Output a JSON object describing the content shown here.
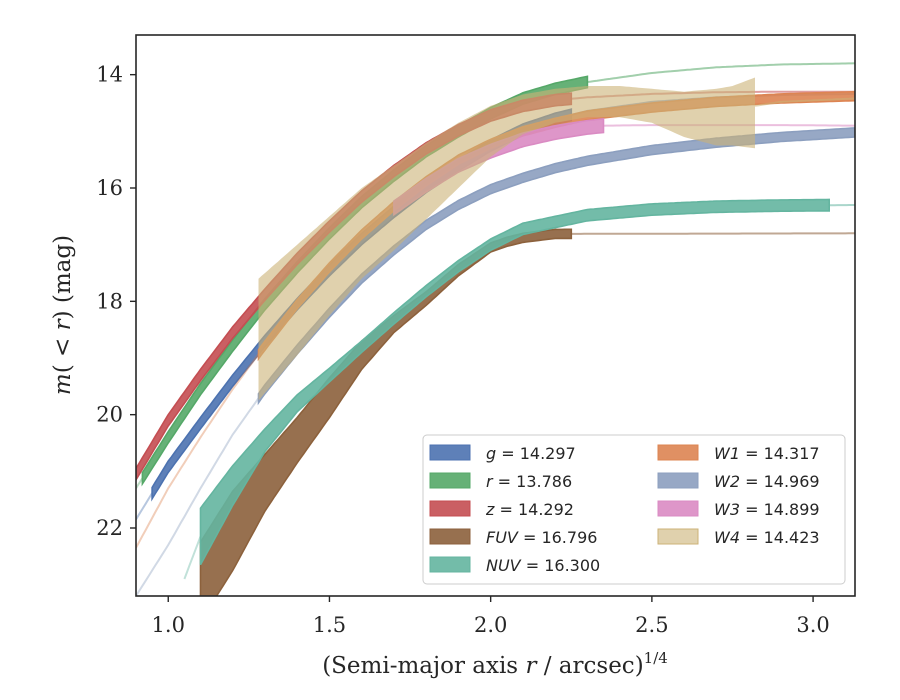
{
  "chart_data": {
    "type": "line",
    "xlabel": "(Semi-major axis r / arcsec)",
    "xlabel_var": "r",
    "xlabel_exp": "1/4",
    "ylabel": "m(< r) (mag)",
    "xlim": [
      0.9,
      3.13
    ],
    "ylim": [
      23.2,
      13.3
    ],
    "y_inverted": true,
    "xticks": [
      1.0,
      1.5,
      2.0,
      2.5,
      3.0
    ],
    "xtick_labels": [
      "1.0",
      "1.5",
      "2.0",
      "2.5",
      "3.0"
    ],
    "yticks": [
      14,
      16,
      18,
      20,
      22
    ],
    "ytick_labels": [
      "14",
      "16",
      "18",
      "20",
      "22"
    ],
    "grid": false,
    "legend_position": "lower-right",
    "legend_columns": 2,
    "series": [
      {
        "name": "g = 14.297",
        "var": "g",
        "value": "14.297",
        "color": "#4c72b0",
        "band": 0.1,
        "fade_below_x": 0.95,
        "fade_above_x": 2.25,
        "x": [
          0.9,
          1.0,
          1.1,
          1.2,
          1.3,
          1.4,
          1.5,
          1.6,
          1.7,
          1.8,
          1.9,
          2.0,
          2.1,
          2.2,
          2.3,
          2.5,
          2.7,
          2.9,
          3.13
        ],
        "y": [
          21.85,
          20.92,
          20.15,
          19.4,
          18.7,
          18.05,
          17.45,
          16.9,
          16.42,
          15.98,
          15.6,
          15.25,
          14.97,
          14.78,
          14.64,
          14.48,
          14.4,
          14.36,
          14.34
        ]
      },
      {
        "name": "r = 13.786",
        "var": "r",
        "value": "13.786",
        "color": "#55a868",
        "band": 0.1,
        "fade_below_x": 0.92,
        "fade_above_x": 2.3,
        "x": [
          0.9,
          1.0,
          1.1,
          1.2,
          1.3,
          1.4,
          1.5,
          1.6,
          1.7,
          1.8,
          1.9,
          2.0,
          2.1,
          2.2,
          2.3,
          2.5,
          2.7,
          2.9,
          3.13
        ],
        "y": [
          21.3,
          20.4,
          19.55,
          18.78,
          18.05,
          17.4,
          16.8,
          16.25,
          15.78,
          15.35,
          15.0,
          14.68,
          14.42,
          14.25,
          14.13,
          13.97,
          13.87,
          13.82,
          13.8
        ]
      },
      {
        "name": "z = 14.292",
        "var": "z",
        "value": "14.292",
        "color": "#c44e52",
        "band": 0.1,
        "fade_below_x": 0.9,
        "fade_above_x": 2.25,
        "x": [
          0.9,
          1.0,
          1.1,
          1.2,
          1.3,
          1.4,
          1.5,
          1.6,
          1.7,
          1.8,
          1.9,
          2.0,
          2.1,
          2.2,
          2.3,
          2.5,
          2.7,
          2.9,
          3.13
        ],
        "y": [
          21.05,
          20.1,
          19.3,
          18.55,
          17.88,
          17.25,
          16.68,
          16.15,
          15.7,
          15.3,
          14.98,
          14.72,
          14.55,
          14.45,
          14.4,
          14.34,
          14.31,
          14.3,
          14.3
        ]
      },
      {
        "name": "FUV = 16.796",
        "var": "FUV",
        "value": "16.796",
        "color": "#8c613c",
        "band_lo": [
          0.7,
          0.7,
          0.5,
          0.4,
          0.35,
          0.25,
          0.15,
          0.12,
          0.1,
          0.08,
          0.08,
          0.08,
          0.08,
          0.08
        ],
        "fade_below_x": 1.1,
        "fade_above_x": 2.25,
        "x": [
          1.1,
          1.2,
          1.3,
          1.4,
          1.5,
          1.6,
          1.7,
          1.8,
          1.9,
          2.0,
          2.05,
          2.1,
          2.2,
          3.13
        ],
        "y": [
          22.95,
          22.05,
          21.2,
          20.45,
          19.7,
          18.95,
          18.4,
          17.95,
          17.45,
          17.05,
          16.95,
          16.88,
          16.81,
          16.8
        ]
      },
      {
        "name": "NUV = 16.300",
        "var": "NUV",
        "value": "16.300",
        "color": "#64b5a0",
        "band_lo": [
          0.7,
          0.5,
          0.35,
          0.2,
          0.15,
          0.12,
          0.1,
          0.1,
          0.1,
          0.1,
          0.1,
          0.1,
          0.1,
          0.1,
          0.1,
          0.1,
          0.1
        ],
        "fade_below_x": 1.1,
        "fade_above_x": 3.05,
        "x": [
          1.05,
          1.1,
          1.2,
          1.3,
          1.4,
          1.5,
          1.6,
          1.7,
          1.8,
          1.9,
          2.0,
          2.1,
          2.3,
          2.5,
          2.7,
          2.9,
          3.13
        ],
        "y": [
          22.9,
          22.15,
          21.25,
          20.45,
          19.8,
          19.3,
          18.8,
          18.3,
          17.82,
          17.38,
          17.0,
          16.72,
          16.48,
          16.38,
          16.33,
          16.31,
          16.3
        ]
      },
      {
        "name": "W1 = 14.317",
        "var": "W1",
        "value": "14.317",
        "color": "#dd8452",
        "band": 0.08,
        "fade_below_x": 1.28,
        "fade_above_x": 3.13,
        "x": [
          0.9,
          1.0,
          1.1,
          1.2,
          1.3,
          1.4,
          1.5,
          1.6,
          1.7,
          1.8,
          1.9,
          2.0,
          2.1,
          2.2,
          2.3,
          2.5,
          2.7,
          2.9,
          3.13
        ],
        "y": [
          22.35,
          21.3,
          20.4,
          19.55,
          18.78,
          18.05,
          17.4,
          16.82,
          16.32,
          15.88,
          15.5,
          15.22,
          15.0,
          14.85,
          14.72,
          14.58,
          14.48,
          14.42,
          14.38
        ]
      },
      {
        "name": "W2 = 14.969",
        "var": "W2",
        "value": "14.969",
        "color": "#8c9fbf",
        "band": 0.08,
        "fade_below_x": 1.28,
        "fade_above_x": 3.13,
        "x": [
          0.9,
          1.0,
          1.1,
          1.2,
          1.3,
          1.4,
          1.5,
          1.6,
          1.7,
          1.8,
          1.9,
          2.0,
          2.1,
          2.2,
          2.3,
          2.5,
          2.7,
          2.9,
          3.13
        ],
        "y": [
          23.2,
          22.3,
          21.3,
          20.35,
          19.55,
          18.85,
          18.2,
          17.6,
          17.1,
          16.65,
          16.3,
          16.02,
          15.82,
          15.65,
          15.52,
          15.33,
          15.2,
          15.1,
          15.02
        ]
      },
      {
        "name": "W3 = 14.899",
        "var": "W3",
        "value": "14.899",
        "color": "#da8bc3",
        "band": 0.12,
        "fade_below_x": 1.7,
        "fade_above_x": 2.35,
        "x": [
          1.7,
          1.8,
          1.9,
          2.0,
          2.1,
          2.2,
          2.3,
          2.35,
          2.5,
          2.7,
          2.9,
          3.13
        ],
        "y": [
          16.35,
          15.95,
          15.6,
          15.35,
          15.15,
          15.02,
          14.93,
          14.9,
          14.89,
          14.89,
          14.89,
          14.9
        ]
      },
      {
        "name": "W4 = 14.423",
        "var": "W4",
        "value": "14.423",
        "color": "#ccb277",
        "fade_below_x": 1.28,
        "fade_above_x": 2.82,
        "x": [
          1.28,
          1.4,
          1.5,
          1.6,
          1.7,
          1.8,
          1.9,
          2.0,
          2.1,
          2.2,
          2.3,
          2.4,
          2.5,
          2.6,
          2.7,
          2.75,
          2.82,
          2.9,
          3.13
        ],
        "y": [
          18.7,
          17.9,
          17.25,
          16.65,
          16.15,
          15.7,
          15.3,
          14.95,
          14.7,
          14.55,
          14.48,
          14.45,
          14.45,
          14.55,
          14.65,
          14.62,
          14.55,
          14.48,
          14.42
        ],
        "y_lo": [
          17.6,
          17.0,
          16.5,
          16.0,
          15.6,
          15.2,
          14.85,
          14.55,
          14.35,
          14.25,
          14.2,
          14.2,
          14.25,
          14.3,
          14.25,
          14.2,
          14.05,
          14.4,
          14.4
        ],
        "y_hi": [
          19.75,
          18.95,
          18.25,
          17.6,
          17.1,
          16.55,
          16.0,
          15.45,
          15.05,
          14.85,
          14.75,
          14.75,
          14.85,
          15.1,
          15.25,
          15.25,
          15.3,
          14.55,
          14.45
        ]
      }
    ]
  }
}
